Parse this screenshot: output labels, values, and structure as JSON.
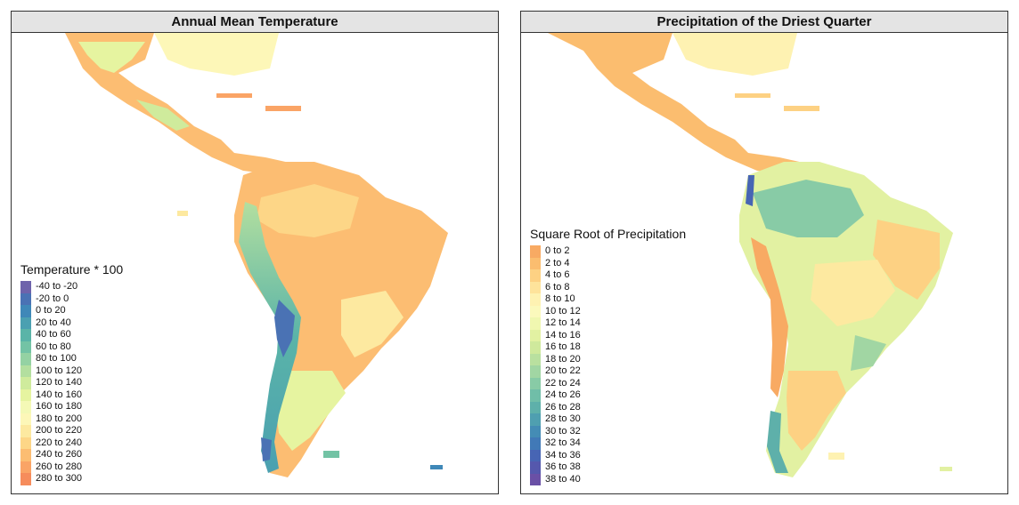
{
  "panels": [
    {
      "title": "Annual Mean Temperature",
      "legend_title": "Temperature * 100",
      "legend": [
        {
          "label": "-40 to -20",
          "color": "#6e63ab"
        },
        {
          "label": "-20 to 0",
          "color": "#4a72b4"
        },
        {
          "label": "0 to 20",
          "color": "#3f88b8"
        },
        {
          "label": "20 to 40",
          "color": "#4ba0b1"
        },
        {
          "label": "40 to 60",
          "color": "#5ab4a8"
        },
        {
          "label": "60 to 80",
          "color": "#73c3a5"
        },
        {
          "label": "80 to 100",
          "color": "#94d2a3"
        },
        {
          "label": "100 to 120",
          "color": "#b3df9f"
        },
        {
          "label": "120 to 140",
          "color": "#cfeb9c"
        },
        {
          "label": "140 to 160",
          "color": "#e6f4a0"
        },
        {
          "label": "160 to 180",
          "color": "#f4f9b6"
        },
        {
          "label": "180 to 200",
          "color": "#fdf7b8"
        },
        {
          "label": "200 to 220",
          "color": "#fde9a0"
        },
        {
          "label": "220 to 240",
          "color": "#fdd687"
        },
        {
          "label": "240 to 260",
          "color": "#fcbd72"
        },
        {
          "label": "260 to 280",
          "color": "#faa466"
        },
        {
          "label": "280 to 300",
          "color": "#f68c5c"
        }
      ]
    },
    {
      "title": "Precipitation of the Driest Quarter",
      "legend_title": "Square Root of Precipitation",
      "legend": [
        {
          "label": "0 to 2",
          "color": "#f8aa63"
        },
        {
          "label": "2 to 4",
          "color": "#fbbd6f"
        },
        {
          "label": "4 to 6",
          "color": "#fdd183"
        },
        {
          "label": "6 to 8",
          "color": "#fee39b"
        },
        {
          "label": "8 to 10",
          "color": "#fef2b2"
        },
        {
          "label": "10 to 12",
          "color": "#fbf9bc"
        },
        {
          "label": "12 to 14",
          "color": "#f0f7b0"
        },
        {
          "label": "14 to 16",
          "color": "#e2f1a2"
        },
        {
          "label": "16 to 18",
          "color": "#cfe99c"
        },
        {
          "label": "18 to 20",
          "color": "#b9e09f"
        },
        {
          "label": "20 to 22",
          "color": "#a1d6a3"
        },
        {
          "label": "22 to 24",
          "color": "#88cba6"
        },
        {
          "label": "24 to 26",
          "color": "#70bea8"
        },
        {
          "label": "26 to 28",
          "color": "#5eb0aa"
        },
        {
          "label": "28 to 30",
          "color": "#4f9fb0"
        },
        {
          "label": "30 to 32",
          "color": "#448cb5"
        },
        {
          "label": "32 to 34",
          "color": "#4179b7"
        },
        {
          "label": "34 to 36",
          "color": "#4765b4"
        },
        {
          "label": "36 to 38",
          "color": "#5558ad"
        },
        {
          "label": "38 to 40",
          "color": "#6a50a6"
        }
      ]
    }
  ]
}
